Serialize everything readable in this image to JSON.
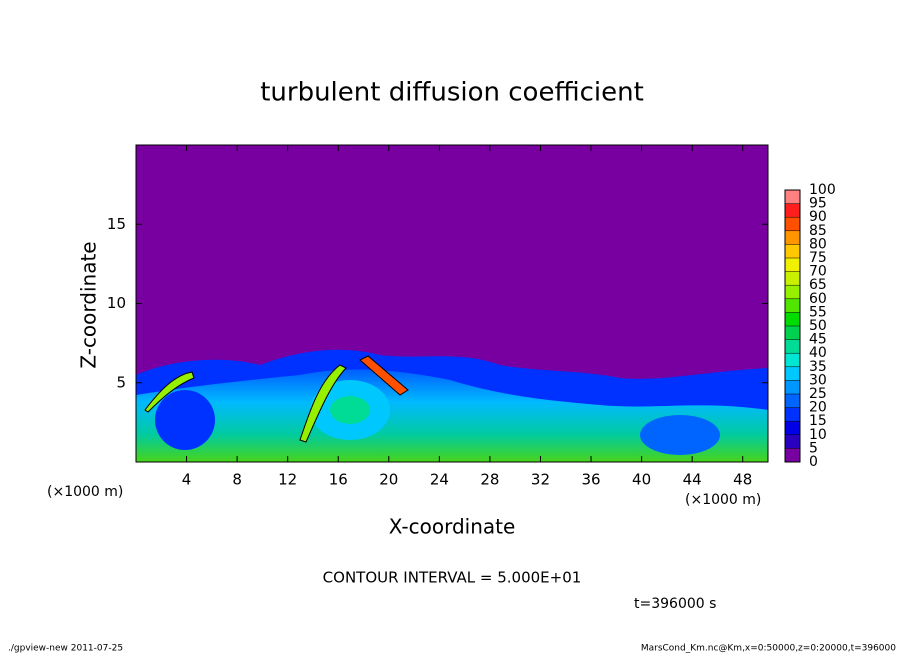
{
  "chart_data": {
    "type": "contour",
    "title": "turbulent diffusion coefficient",
    "x_label": "X-coordinate",
    "y_label": "Z-coordinate",
    "x_unit_label": "(×1000 m)",
    "y_unit_label": "(×1000 m)",
    "xlim": [
      0,
      50
    ],
    "ylim": [
      0,
      20
    ],
    "xticks": [
      4,
      8,
      12,
      16,
      20,
      24,
      28,
      32,
      36,
      40,
      44,
      48
    ],
    "yticks": [
      5,
      10,
      15
    ],
    "colorbar": {
      "levels": [
        0,
        5,
        10,
        15,
        20,
        25,
        30,
        35,
        40,
        45,
        50,
        55,
        60,
        65,
        70,
        75,
        80,
        85,
        90,
        95,
        100
      ],
      "colors": [
        "#7800a0",
        "#2a00c0",
        "#0000e6",
        "#0032ff",
        "#0064ff",
        "#0096ff",
        "#00c8ff",
        "#00e6d2",
        "#00dc96",
        "#00d250",
        "#00dc00",
        "#50e600",
        "#96f000",
        "#c8f000",
        "#f0f000",
        "#ffc800",
        "#ff9600",
        "#ff5000",
        "#ff1e1e",
        "#ff8080"
      ]
    },
    "contour_interval": "CONTOUR INTERVAL = 5.000E+01",
    "time_label": "t=396000 s",
    "footer_left": "./gpview-new  2011-07-25",
    "footer_right": "MarsCond_Km.nc@Km,x=0:50000,z=0:20000,t=396000"
  }
}
